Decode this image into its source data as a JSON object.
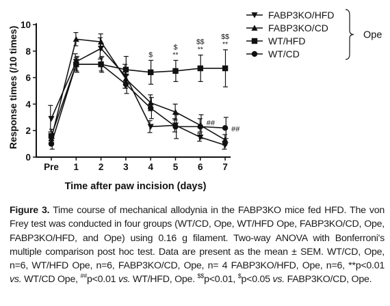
{
  "chart_data": {
    "type": "line",
    "ylabel": "Response times (/10 times)",
    "xlabel": "Time after paw incision (days)",
    "categories": [
      "Pre",
      "1",
      "2",
      "3",
      "4",
      "5",
      "6",
      "7"
    ],
    "ylim": [
      0,
      10
    ],
    "yticks": [
      "0",
      "2",
      "4",
      "6",
      "8",
      "10"
    ],
    "grid": false,
    "legend_position": "top-right",
    "legend_group_label": "Ope",
    "series": [
      {
        "name": "FABP3KO/HFD",
        "marker": "triangle-down",
        "values": [
          2.9,
          7.2,
          8.2,
          6.1,
          2.3,
          2.4,
          1.5,
          0.9
        ],
        "errors": [
          1.0,
          0.6,
          0.8,
          0.9,
          0.45,
          0.5,
          0.3,
          0.3
        ]
      },
      {
        "name": "FABP3KO/CD",
        "marker": "triangle-up",
        "values": [
          1.4,
          8.9,
          8.7,
          5.9,
          4.1,
          3.4,
          2.4,
          1.3
        ],
        "errors": [
          0.3,
          0.5,
          0.6,
          0.7,
          0.6,
          0.6,
          0.5,
          0.4
        ]
      },
      {
        "name": "WT/HFD",
        "marker": "square",
        "values": [
          1.6,
          7.0,
          7.0,
          6.6,
          6.4,
          6.5,
          6.7,
          6.7
        ],
        "errors": [
          0.5,
          0.5,
          0.5,
          1.0,
          0.9,
          0.8,
          1.0,
          1.4
        ]
      },
      {
        "name": "WT/CD",
        "marker": "circle",
        "values": [
          1.0,
          7.0,
          7.0,
          5.5,
          3.7,
          2.3,
          2.3,
          2.2
        ],
        "errors": [
          0.4,
          0.6,
          0.6,
          0.7,
          0.8,
          0.9,
          0.9,
          0.8
        ]
      }
    ],
    "annotations": [
      {
        "category": "4",
        "labels": [
          "$"
        ]
      },
      {
        "category": "5",
        "labels": [
          "$",
          "**"
        ]
      },
      {
        "category": "6",
        "labels": [
          "$$",
          "**"
        ]
      },
      {
        "category": "7",
        "labels": [
          "$$",
          "**"
        ]
      },
      {
        "category": "6",
        "labels": [
          "##"
        ],
        "side": "right"
      },
      {
        "category": "7",
        "labels": [
          "##"
        ],
        "side": "right"
      }
    ]
  },
  "caption": {
    "lead": "Figure 3.",
    "p1": " Time course of mechanical allodynia in the FABP3KO mice fed HFD. The von Frey test was conducted in four groups (WT/CD, Ope, WT/HFD Ope, FABP3KO/CD, Ope, FABP3KO/HFD, and Ope) using 0.16 g filament. Two-way ANOVA with Bonferroni's multiple comparison post hoc test. Data are present as the mean ± SEM. WT/CD, Ope, n=6, WT/HFD Ope, n=6, FABP3KO/CD, Ope, n= 4 FABP3KO/HFD, Ope, n=6, **p<0.01 ",
    "vs1": "vs.",
    "p2": " WT/CD Ope, ",
    "sup1": "##",
    "p3": "p<0.01 ",
    "vs2": "vs.",
    "p4": " WT/HFD, Ope. ",
    "sup2": "$$",
    "p5": "p<0.01, ",
    "sup3": "$",
    "p6": "p<0.05 ",
    "vs3": "vs.",
    "p7": " FABP3KO/CD, Ope."
  }
}
